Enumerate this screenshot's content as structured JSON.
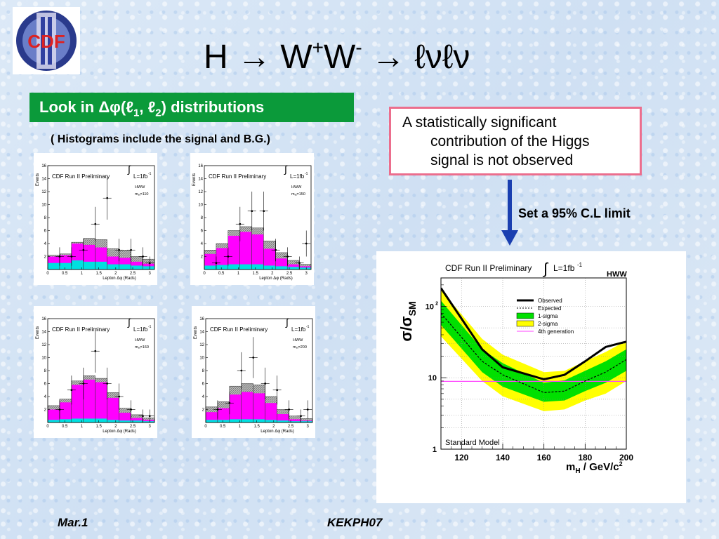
{
  "logo": {
    "text": "CDF",
    "numeral": "II"
  },
  "title": {
    "h": "H",
    "arrow1": "→",
    "w1": "W",
    "sup1": "+",
    "w2": "W",
    "sup2": "-",
    "arrow2": "→",
    "rest": "ℓνℓν"
  },
  "banner": {
    "pre": "Look in Δφ(ℓ",
    "sub1": "1",
    "mid": ", ℓ",
    "sub2": "2",
    "post": ") distributions"
  },
  "note": "( Histograms include the signal and B.G.)",
  "callout": {
    "line1": "A statistically significant",
    "line2": "contribution of the Higgs",
    "line3": "signal is not observed"
  },
  "set_limit": "Set a 95% C.L limit",
  "footer": {
    "left": "Mar.1",
    "middle": "KEKPH07"
  },
  "colors": {
    "banner": "#0b9a3a",
    "callout_border": "#ec6e8d",
    "arrow": "#1a3fb0",
    "signal": "#ff00ff",
    "bg_cyan": "#00e0e0",
    "one_sigma": "#00e000",
    "two_sigma": "#ffff00",
    "fourth_gen": "#ff44ff"
  },
  "chart_data": [
    {
      "type": "bar",
      "title": "CDF Run II Preliminary",
      "lumi": "L=1fb",
      "lumi_exp": "-1",
      "process": "HWW",
      "mass_label": "m",
      "mass_sub": "H",
      "mass_value": "=110",
      "xlabel": "Lepton Δφ (Rads)",
      "ylabel": "Events",
      "ylim": [
        0,
        16
      ],
      "xlim": [
        0,
        3.14
      ],
      "xticks": [
        "0",
        "0.5",
        "1",
        "1.5",
        "2",
        "2.5",
        "3"
      ],
      "yticks": [
        "2",
        "4",
        "6",
        "8",
        "10",
        "12",
        "14",
        "16"
      ],
      "stack_total": [
        2.2,
        2.4,
        4.2,
        4.8,
        4.6,
        3.2,
        3.0,
        2.0,
        1.6
      ],
      "signal": [
        1.0,
        1.2,
        2.6,
        2.6,
        2.2,
        1.2,
        1.0,
        0.6,
        0.4
      ],
      "cyan": [
        1.0,
        1.0,
        1.4,
        1.2,
        1.2,
        0.8,
        0.8,
        0.6,
        0.5
      ],
      "data_x": [
        0.35,
        0.7,
        1.05,
        1.4,
        1.75,
        2.1,
        2.45,
        2.8,
        3.0
      ],
      "data_y": [
        2,
        2,
        3,
        7,
        11,
        3,
        3,
        2,
        1
      ]
    },
    {
      "type": "bar",
      "title": "CDF Run II Preliminary",
      "lumi": "L=1fb",
      "lumi_exp": "-1",
      "process": "HWW",
      "mass_label": "m",
      "mass_sub": "H",
      "mass_value": "=150",
      "xlabel": "Lepton Δφ (Rads)",
      "ylabel": "Events",
      "ylim": [
        0,
        16
      ],
      "xlim": [
        0,
        3.14
      ],
      "xticks": [
        "0",
        "0.5",
        "1",
        "1.5",
        "2",
        "2.5",
        "3"
      ],
      "yticks": [
        "2",
        "4",
        "6",
        "8",
        "10",
        "12",
        "14",
        "16"
      ],
      "stack_total": [
        3.0,
        4.0,
        6.0,
        6.6,
        6.4,
        4.4,
        2.6,
        1.4,
        0.8
      ],
      "signal": [
        1.8,
        2.6,
        4.4,
        5.0,
        4.6,
        2.6,
        1.2,
        0.4,
        0.2
      ],
      "cyan": [
        0.6,
        0.7,
        0.8,
        0.8,
        0.8,
        0.6,
        0.5,
        0.4,
        0.3
      ],
      "data_x": [
        0.35,
        0.7,
        1.05,
        1.4,
        1.75,
        2.1,
        2.45,
        2.8,
        3.0
      ],
      "data_y": [
        1,
        2,
        7,
        9,
        9,
        3,
        2,
        1,
        4
      ]
    },
    {
      "type": "bar",
      "title": "CDF Run II Preliminary",
      "lumi": "L=1fb",
      "lumi_exp": "-1",
      "process": "HWW",
      "mass_label": "m",
      "mass_sub": "H",
      "mass_value": "=160",
      "xlabel": "Lepton Δφ (Rads)",
      "ylabel": "Events",
      "ylim": [
        0,
        16
      ],
      "xlim": [
        0,
        3.14
      ],
      "xticks": [
        "0",
        "0.5",
        "1",
        "1.5",
        "2",
        "2.5",
        "3"
      ],
      "yticks": [
        "2",
        "4",
        "6",
        "8",
        "10",
        "12",
        "14",
        "16"
      ],
      "stack_total": [
        2.6,
        3.6,
        6.4,
        7.2,
        6.8,
        4.6,
        2.2,
        1.2,
        0.7
      ],
      "signal": [
        1.6,
        2.6,
        5.2,
        6.0,
        5.6,
        3.4,
        1.2,
        0.4,
        0.2
      ],
      "cyan": [
        0.4,
        0.5,
        0.6,
        0.6,
        0.6,
        0.4,
        0.3,
        0.3,
        0.2
      ],
      "data_x": [
        0.35,
        0.7,
        1.05,
        1.4,
        1.75,
        2.1,
        2.45,
        2.8,
        3.0
      ],
      "data_y": [
        2,
        5,
        6,
        11,
        6,
        4,
        2,
        1,
        1
      ]
    },
    {
      "type": "bar",
      "title": "CDF Run II Preliminary",
      "lumi": "L=1fb",
      "lumi_exp": "-1",
      "process": "HWW",
      "mass_label": "m",
      "mass_sub": "H",
      "mass_value": "=200",
      "xlabel": "Lepton Δφ (Rads)",
      "ylabel": "Events",
      "ylim": [
        0,
        16
      ],
      "xlim": [
        0,
        3.14
      ],
      "xticks": [
        "0",
        "0.5",
        "1",
        "1.5",
        "2",
        "2.5",
        "3"
      ],
      "yticks": [
        "2",
        "4",
        "6",
        "8",
        "10",
        "12",
        "14",
        "16"
      ],
      "stack_total": [
        2.4,
        3.2,
        5.6,
        6.0,
        5.8,
        4.0,
        2.0,
        1.0,
        0.6
      ],
      "signal": [
        1.2,
        1.8,
        3.8,
        4.2,
        4.0,
        2.6,
        1.0,
        0.3,
        0.1
      ],
      "cyan": [
        0.4,
        0.4,
        0.5,
        0.5,
        0.5,
        0.4,
        0.3,
        0.2,
        0.2
      ],
      "data_x": [
        0.35,
        0.7,
        1.05,
        1.4,
        1.75,
        2.1,
        2.45,
        2.8,
        3.0
      ],
      "data_y": [
        2,
        3,
        8,
        10,
        6,
        5,
        2,
        1,
        2
      ]
    },
    {
      "type": "line",
      "title": "CDF Run II Preliminary",
      "lumi": "L=1fb",
      "lumi_exp": "-1",
      "process": "HWW",
      "ylabel": "σ/σ",
      "ylabel_sub": "SM",
      "xlabel": "m",
      "xlabel_sub": "H",
      "xlabel_unit": " / GeV/c",
      "xlabel_exp": "2",
      "yscale": "log",
      "ylim": [
        1,
        250
      ],
      "xlim": [
        110,
        200
      ],
      "xticks": [
        "120",
        "140",
        "160",
        "180",
        "200"
      ],
      "yticks": [
        "1",
        "10",
        "10"
      ],
      "ytick_exp": "2",
      "annotation": "Standard Model",
      "x": [
        110,
        130,
        140,
        160,
        170,
        180,
        190,
        200
      ],
      "observed": [
        180,
        25,
        14,
        9.5,
        11,
        17,
        27,
        32
      ],
      "expected": [
        80,
        17,
        11,
        6.2,
        6.5,
        9,
        12,
        18
      ],
      "one_sigma_low": [
        55,
        12,
        7.5,
        4.6,
        4.8,
        6.5,
        8.5,
        12.5
      ],
      "one_sigma_high": [
        120,
        25,
        16,
        8.5,
        9.2,
        12.5,
        17,
        25
      ],
      "two_sigma_low": [
        38,
        9,
        5.5,
        3.4,
        3.6,
        4.8,
        6,
        9
      ],
      "two_sigma_high": [
        170,
        35,
        21,
        12,
        12.5,
        17,
        23,
        33
      ],
      "fourth_gen": 8.9,
      "legend": [
        "Observed",
        "Expected",
        "1-sigma",
        "2-sigma",
        "4th generation"
      ],
      "legend_position": "top-right"
    }
  ]
}
